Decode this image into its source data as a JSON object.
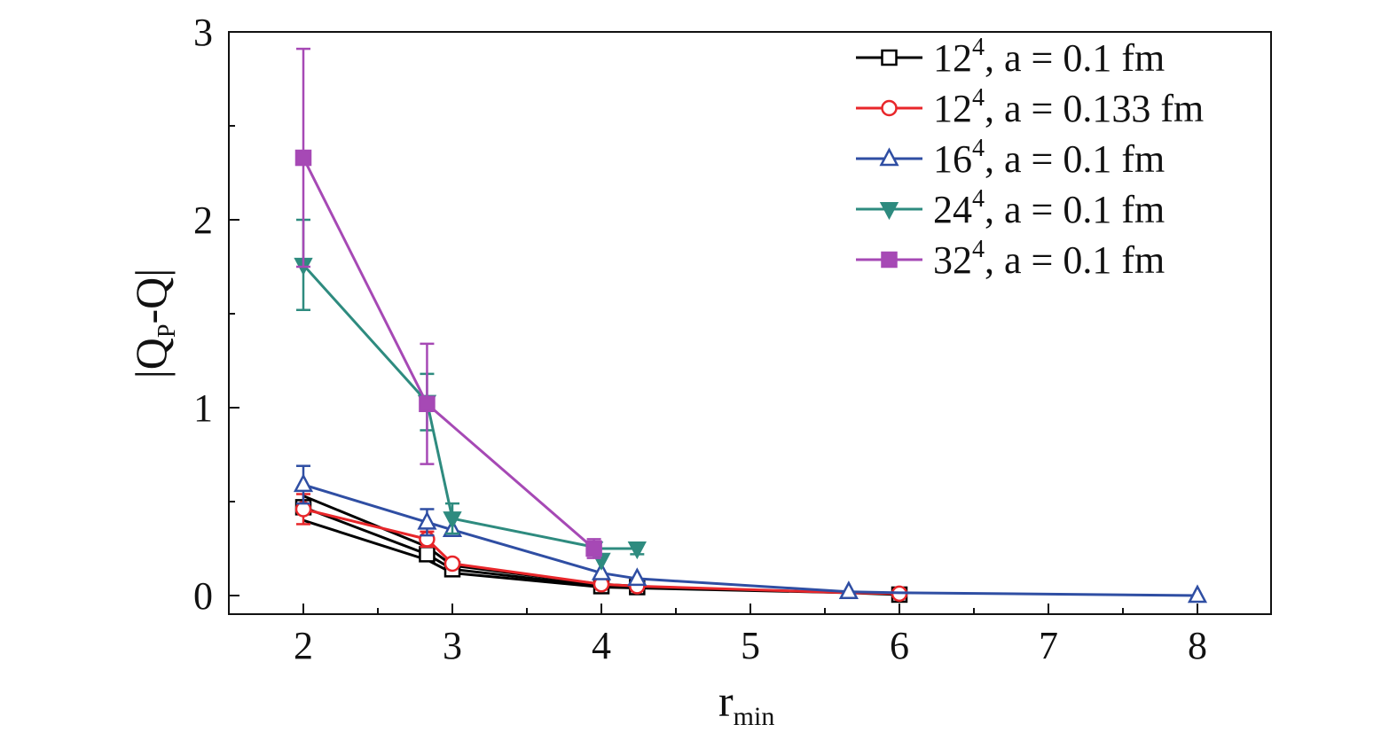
{
  "chart_data": {
    "type": "line",
    "xlabel": "r",
    "xlabel_sub": "min",
    "ylabel_parts": [
      "|Q",
      "P",
      "-Q|"
    ],
    "xlim": [
      1.5,
      8.5
    ],
    "ylim": [
      -0.1,
      3.0
    ],
    "xticks": [
      2,
      3,
      4,
      5,
      6,
      7,
      8
    ],
    "yticks": [
      0,
      1,
      2,
      3
    ],
    "grid": false,
    "legend_position": "top-right",
    "series": [
      {
        "name": "12⁴, a = 0.1 fm",
        "label_base": "12",
        "label_sup": "4",
        "label_rest": ", a = 0.1 fm",
        "color": "#000000",
        "marker": "square-open",
        "lines": [
          [
            [
              2,
              0.53
            ],
            [
              2.83,
              0.26
            ],
            [
              3,
              0.16
            ],
            [
              4,
              0.06
            ],
            [
              4.24,
              0.05
            ]
          ],
          [
            [
              2,
              0.47
            ],
            [
              2.83,
              0.22
            ],
            [
              3,
              0.14
            ],
            [
              4,
              0.05
            ],
            [
              4.24,
              0.045
            ]
          ],
          [
            [
              2,
              0.4
            ],
            [
              2.83,
              0.19
            ],
            [
              3,
              0.12
            ],
            [
              4,
              0.045
            ],
            [
              4.24,
              0.04
            ],
            [
              5.66,
              0.015
            ],
            [
              6,
              0.005
            ]
          ]
        ],
        "points": [
          {
            "x": 2,
            "y": 0.47
          },
          {
            "x": 2.83,
            "y": 0.22
          },
          {
            "x": 3,
            "y": 0.14
          },
          {
            "x": 4,
            "y": 0.05
          },
          {
            "x": 4.24,
            "y": 0.045
          },
          {
            "x": 6,
            "y": 0.005
          }
        ]
      },
      {
        "name": "12⁴, a = 0.133 fm",
        "label_base": "12",
        "label_sup": "4",
        "label_rest": ", a = 0.133 fm",
        "color": "#e8262a",
        "marker": "circle-open",
        "lines": [
          [
            [
              2,
              0.46
            ],
            [
              2.83,
              0.3
            ],
            [
              3,
              0.17
            ],
            [
              4,
              0.06
            ],
            [
              4.24,
              0.05
            ],
            [
              5.66,
              0.015
            ],
            [
              6,
              0.01
            ]
          ]
        ],
        "points": [
          {
            "x": 2,
            "y": 0.46,
            "err": 0.08
          },
          {
            "x": 2.83,
            "y": 0.3,
            "err": 0.04
          },
          {
            "x": 3,
            "y": 0.17,
            "err": 0.02
          },
          {
            "x": 4,
            "y": 0.06
          },
          {
            "x": 4.24,
            "y": 0.05
          },
          {
            "x": 6,
            "y": 0.01
          }
        ]
      },
      {
        "name": "16⁴, a = 0.1 fm",
        "label_base": "16",
        "label_sup": "4",
        "label_rest": ", a = 0.1 fm",
        "color": "#2f4ea3",
        "marker": "triangle-up-open",
        "lines": [
          [
            [
              2,
              0.59
            ],
            [
              2.83,
              0.39
            ],
            [
              3,
              0.35
            ],
            [
              4,
              0.12
            ],
            [
              4.24,
              0.09
            ],
            [
              5.66,
              0.02
            ],
            [
              6,
              0.015
            ],
            [
              8,
              0.0
            ]
          ]
        ],
        "points": [
          {
            "x": 2,
            "y": 0.59,
            "err": 0.1
          },
          {
            "x": 2.83,
            "y": 0.39,
            "err": 0.07
          },
          {
            "x": 3,
            "y": 0.35
          },
          {
            "x": 4,
            "y": 0.12
          },
          {
            "x": 4.24,
            "y": 0.09
          },
          {
            "x": 5.66,
            "y": 0.02
          },
          {
            "x": 8,
            "y": 0.0
          }
        ]
      },
      {
        "name": "24⁴, a = 0.1 fm",
        "label_base": "24",
        "label_sup": "4",
        "label_rest": ", a = 0.1 fm",
        "color": "#2e8b7f",
        "marker": "triangle-down-filled",
        "lines": [
          [
            [
              2,
              1.76
            ],
            [
              2.83,
              1.03
            ],
            [
              3,
              0.41
            ],
            [
              4,
              0.25
            ],
            [
              4.24,
              0.25
            ]
          ]
        ],
        "points": [
          {
            "x": 2,
            "y": 1.76,
            "err": 0.24
          },
          {
            "x": 2.83,
            "y": 1.03,
            "err": 0.15
          },
          {
            "x": 3,
            "y": 0.41,
            "err": 0.08
          },
          {
            "x": 3.95,
            "y": 0.25
          },
          {
            "x": 4,
            "y": 0.19
          },
          {
            "x": 4.24,
            "y": 0.25,
            "err": 0.03
          }
        ]
      },
      {
        "name": "32⁴, a = 0.1 fm",
        "label_base": "32",
        "label_sup": "4",
        "label_rest": ", a = 0.1 fm",
        "color": "#a649b5",
        "marker": "square-filled",
        "lines": [
          [
            [
              2,
              2.33
            ],
            [
              2.83,
              1.02
            ],
            [
              3.95,
              0.25
            ]
          ]
        ],
        "points": [
          {
            "x": 2,
            "y": 2.33,
            "err": 0.58
          },
          {
            "x": 2.83,
            "y": 1.02,
            "err": 0.32
          },
          {
            "x": 3.95,
            "y": 0.25,
            "err": 0.05
          }
        ]
      }
    ]
  }
}
